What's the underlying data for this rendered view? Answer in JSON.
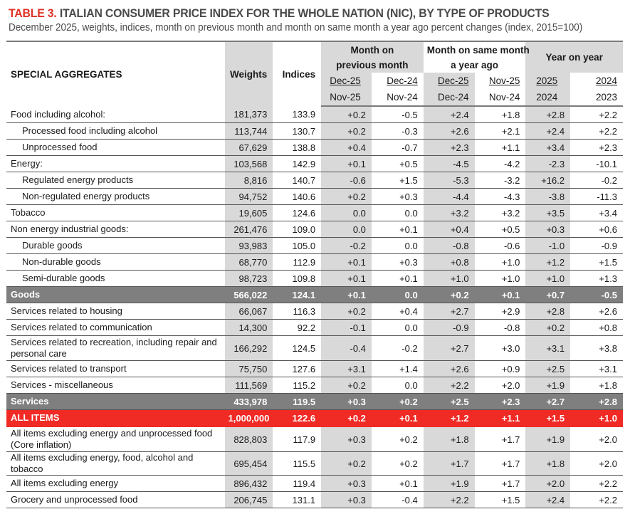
{
  "title": {
    "label": "TABLE 3.",
    "text": " ITALIAN CONSUMER PRICE INDEX FOR THE WHOLE NATION (NIC), BY TYPE OF PRODUCTS"
  },
  "subtitle": "December 2025, weights, indices, month on previous month and month on same month a year ago percent changes (index, 2015=100)",
  "colors": {
    "title_accent": "#e03127",
    "shaded_column": "#d9d9d9",
    "subtotal_row": "#7f7f7f",
    "all_items_row": "#f02a25"
  },
  "header": {
    "special_aggregates": "SPECIAL AGGREGATES",
    "weights": "Weights",
    "indices": "Indices",
    "group_mom": "Month on previous month",
    "group_mom_line1": "Month on",
    "group_mom_line2": "previous month",
    "group_yoy_month_line1": "Month on same month",
    "group_yoy_month_line2": "a year ago",
    "group_year": "Year on year",
    "periods_top": [
      "Dec-25",
      "Dec-24",
      "Dec-25",
      "Nov-25",
      "2025",
      "2024"
    ],
    "periods_bottom": [
      "Nov-25",
      "Nov-24",
      "Dec-24",
      "Nov-24",
      "2024",
      "2023"
    ]
  },
  "rows": [
    {
      "label": "Food including alcohol:",
      "weight": "181,373",
      "index": "133.9",
      "values": [
        "+0.2",
        "-0.5",
        "+2.4",
        "+1.8",
        "+2.8",
        "+2.2"
      ]
    },
    {
      "label": "Processed food including alcohol",
      "weight": "113,744",
      "index": "130.7",
      "values": [
        "+0.2",
        "-0.3",
        "+2.6",
        "+2.1",
        "+2.4",
        "+2.2"
      ]
    },
    {
      "label": "Unprocessed food",
      "weight": "67,629",
      "index": "138.8",
      "values": [
        "+0.4",
        "-0.7",
        "+2.3",
        "+1.1",
        "+3.4",
        "+2.3"
      ]
    },
    {
      "label": "Energy:",
      "weight": "103,568",
      "index": "142.9",
      "values": [
        "+0.1",
        "+0.5",
        "-4.5",
        "-4.2",
        "-2.3",
        "-10.1"
      ]
    },
    {
      "label": "Regulated energy products",
      "weight": "8,816",
      "index": "140.7",
      "values": [
        "-0.6",
        "+1.5",
        "-5.3",
        "-3.2",
        "+16.2",
        "-0.2"
      ]
    },
    {
      "label": "Non-regulated energy products",
      "weight": "94,752",
      "index": "140.6",
      "values": [
        "+0.2",
        "+0.3",
        "-4.4",
        "-4.3",
        "-3.8",
        "-11.3"
      ]
    },
    {
      "label": "Tobacco",
      "weight": "19,605",
      "index": "124.6",
      "values": [
        "0.0",
        "0.0",
        "+3.2",
        "+3.2",
        "+3.5",
        "+3.4"
      ]
    },
    {
      "label": "Non energy industrial goods:",
      "weight": "261,476",
      "index": "109.0",
      "values": [
        "0.0",
        "+0.1",
        "+0.4",
        "+0.5",
        "+0.3",
        "+0.6"
      ]
    },
    {
      "label": "Durable goods",
      "weight": "93,983",
      "index": "105.0",
      "values": [
        "-0.2",
        "0.0",
        "-0.8",
        "-0.6",
        "-1.0",
        "-0.9"
      ]
    },
    {
      "label": "Non-durable goods",
      "weight": "68,770",
      "index": "112.9",
      "values": [
        "+0.1",
        "+0.3",
        "+0.8",
        "+1.0",
        "+1.2",
        "+1.5"
      ]
    },
    {
      "label": "Semi-durable goods",
      "weight": "98,723",
      "index": "109.8",
      "values": [
        "+0.1",
        "+0.1",
        "+1.0",
        "+1.0",
        "+1.0",
        "+1.3"
      ]
    },
    {
      "label": "Goods",
      "weight": "566,022",
      "index": "124.1",
      "values": [
        "+0.1",
        "0.0",
        "+0.2",
        "+0.1",
        "+0.7",
        "-0.5"
      ]
    },
    {
      "label": "Services related to housing",
      "weight": "66,067",
      "index": "116.3",
      "values": [
        "+0.2",
        "+0.4",
        "+2.7",
        "+2.9",
        "+2.8",
        "+2.6"
      ]
    },
    {
      "label": "Services related to communication",
      "weight": "14,300",
      "index": "92.2",
      "values": [
        "-0.1",
        "0.0",
        "-0.9",
        "-0.8",
        "+0.2",
        "+0.8"
      ]
    },
    {
      "label": "Services related to recreation, including repair and personal care",
      "weight": "166,292",
      "index": "124.5",
      "values": [
        "-0.4",
        "-0.2",
        "+2.7",
        "+3.0",
        "+3.1",
        "+3.8"
      ]
    },
    {
      "label": "Services related to transport",
      "weight": "75,750",
      "index": "127.6",
      "values": [
        "+3.1",
        "+1.4",
        "+2.6",
        "+0.9",
        "+2.5",
        "+3.1"
      ]
    },
    {
      "label": "Services - miscellaneous",
      "weight": "111,569",
      "index": "115.2",
      "values": [
        "+0.2",
        "0.0",
        "+2.2",
        "+2.0",
        "+1.9",
        "+1.8"
      ]
    },
    {
      "label": "Services",
      "weight": "433,978",
      "index": "119.5",
      "values": [
        "+0.3",
        "+0.2",
        "+2.5",
        "+2.3",
        "+2.7",
        "+2.8"
      ]
    },
    {
      "label": "ALL ITEMS",
      "weight": "1,000,000",
      "index": "122.6",
      "values": [
        "+0.2",
        "+0.1",
        "+1.2",
        "+1.1",
        "+1.5",
        "+1.0"
      ]
    },
    {
      "label": "All items excluding energy and unprocessed food (Core inflation)",
      "weight": "828,803",
      "index": "117.9",
      "values": [
        "+0.3",
        "+0.2",
        "+1.8",
        "+1.7",
        "+1.9",
        "+2.0"
      ]
    },
    {
      "label": "All items excluding energy, food, alcohol and tobacco",
      "weight": "695,454",
      "index": "115.5",
      "values": [
        "+0.2",
        "+0.2",
        "+1.7",
        "+1.7",
        "+1.8",
        "+2.0"
      ]
    },
    {
      "label": "All items excluding energy",
      "weight": "896,432",
      "index": "119.4",
      "values": [
        "+0.3",
        "+0.1",
        "+1.9",
        "+1.7",
        "+2.0",
        "+2.2"
      ]
    },
    {
      "label": "Grocery and unprocessed food",
      "weight": "206,745",
      "index": "131.1",
      "values": [
        "+0.3",
        "-0.4",
        "+2.2",
        "+1.5",
        "+2.4",
        "+2.2"
      ]
    }
  ]
}
